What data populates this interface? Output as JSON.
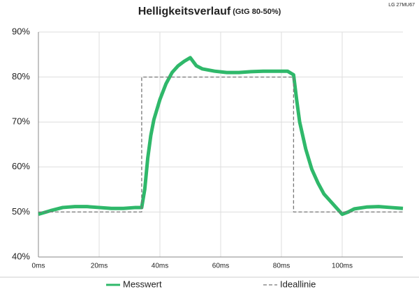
{
  "chart_data": {
    "type": "line",
    "title": "Helligkeitsverlauf",
    "subtitle": "(GtG 80-50%)",
    "corner_label": "LG 27MU67",
    "xlim": [
      0,
      120
    ],
    "xticks": [
      {
        "value": 0,
        "label": "0ms"
      },
      {
        "value": 20,
        "label": "20ms"
      },
      {
        "value": 40,
        "label": "40ms"
      },
      {
        "value": 60,
        "label": "60ms"
      },
      {
        "value": 80,
        "label": "80ms"
      },
      {
        "value": 100,
        "label": "100ms"
      }
    ],
    "ylim": [
      40,
      90
    ],
    "yticks": [
      {
        "value": 40,
        "label": "40%"
      },
      {
        "value": 50,
        "label": "50%"
      },
      {
        "value": 60,
        "label": "60%"
      },
      {
        "value": 70,
        "label": "70%"
      },
      {
        "value": 80,
        "label": "80%"
      },
      {
        "value": 90,
        "label": "90%"
      }
    ],
    "grid": true,
    "legend": "bottom",
    "series": [
      {
        "name": "Messwert",
        "color": "#2fb86a",
        "style": "solid",
        "x": [
          0,
          4,
          8,
          12,
          16,
          20,
          24,
          28,
          32,
          34,
          35,
          36,
          37,
          38,
          40,
          42,
          44,
          46,
          48,
          50,
          52,
          54,
          58,
          62,
          66,
          70,
          74,
          78,
          82,
          84,
          85,
          86,
          88,
          90,
          92,
          94,
          96,
          98,
          100,
          102,
          104,
          108,
          112,
          116,
          120
        ],
        "values": [
          49.5,
          50.3,
          51,
          51.2,
          51.2,
          51,
          50.8,
          50.8,
          51,
          51,
          55,
          62,
          67,
          70.5,
          75,
          78.5,
          81,
          82.5,
          83.5,
          84.3,
          82.5,
          81.8,
          81.3,
          81,
          81,
          81.2,
          81.3,
          81.3,
          81.3,
          80.5,
          75,
          70,
          64,
          59.5,
          56.5,
          54,
          52.5,
          51,
          49.5,
          50,
          50.7,
          51.1,
          51.2,
          51,
          50.8
        ]
      },
      {
        "name": "Ideallinie",
        "color": "#777777",
        "style": "dashed",
        "x": [
          0,
          34,
          34,
          84,
          84,
          120
        ],
        "values": [
          50,
          50,
          80,
          80,
          50,
          50
        ]
      }
    ]
  }
}
